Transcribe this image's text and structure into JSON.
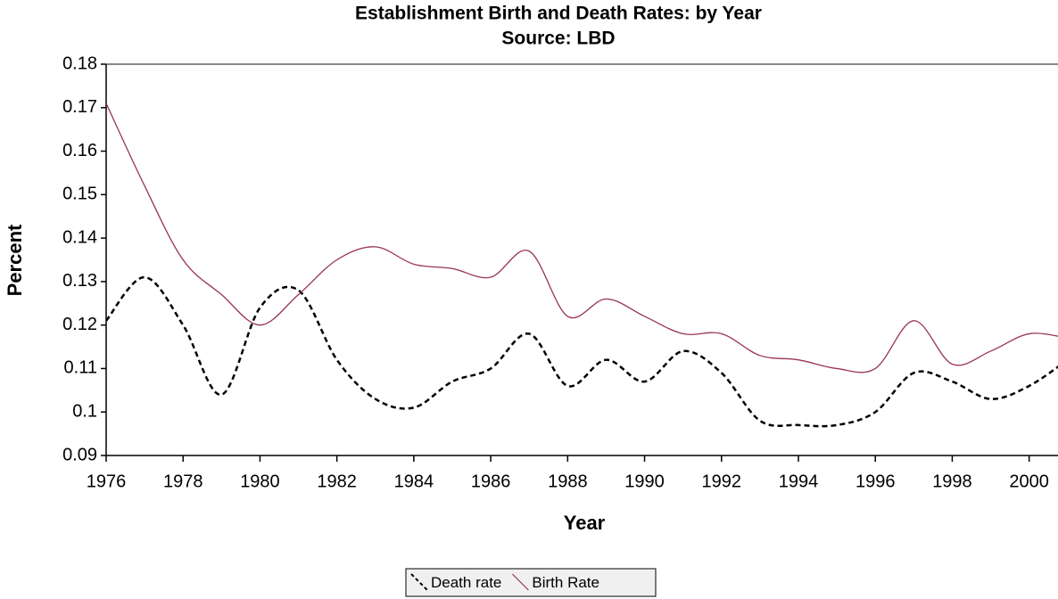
{
  "chart_data": {
    "type": "line",
    "title": "Establishment Birth and Death Rates: by Year",
    "subtitle": "Source: LBD",
    "x_label": "Year",
    "y_label": "Percent",
    "x": [
      1976,
      1977,
      1978,
      1979,
      1980,
      1981,
      1982,
      1983,
      1984,
      1985,
      1986,
      1987,
      1988,
      1989,
      1990,
      1991,
      1992,
      1993,
      1994,
      1995,
      1996,
      1997,
      1998,
      1999,
      2000,
      2001
    ],
    "series": [
      {
        "name": "Death rate",
        "color": "#000000",
        "dashed": true,
        "values": [
          0.121,
          0.131,
          0.12,
          0.104,
          0.124,
          0.128,
          0.112,
          0.103,
          0.101,
          0.107,
          0.11,
          0.118,
          0.106,
          0.112,
          0.107,
          0.114,
          0.109,
          0.098,
          0.097,
          0.097,
          0.1,
          0.109,
          0.107,
          0.103,
          0.106,
          0.112
        ]
      },
      {
        "name": "Birth Rate",
        "color": "#993355",
        "dashed": false,
        "values": [
          0.171,
          0.152,
          0.135,
          0.127,
          0.12,
          0.127,
          0.135,
          0.138,
          0.134,
          0.133,
          0.131,
          0.137,
          0.122,
          0.126,
          0.122,
          0.118,
          0.118,
          0.113,
          0.112,
          0.11,
          0.11,
          0.121,
          0.111,
          0.114,
          0.118,
          0.117
        ]
      }
    ],
    "xlim": [
      1976,
      2000.75
    ],
    "xticks": [
      1976,
      1978,
      1980,
      1982,
      1984,
      1986,
      1988,
      1990,
      1992,
      1994,
      1996,
      1998,
      2000
    ],
    "ylim": [
      0.09,
      0.18
    ],
    "yticks": [
      0.09,
      0.1,
      0.11,
      0.12,
      0.13,
      0.14,
      0.15,
      0.16,
      0.17,
      0.18
    ],
    "legend": "bottom"
  }
}
